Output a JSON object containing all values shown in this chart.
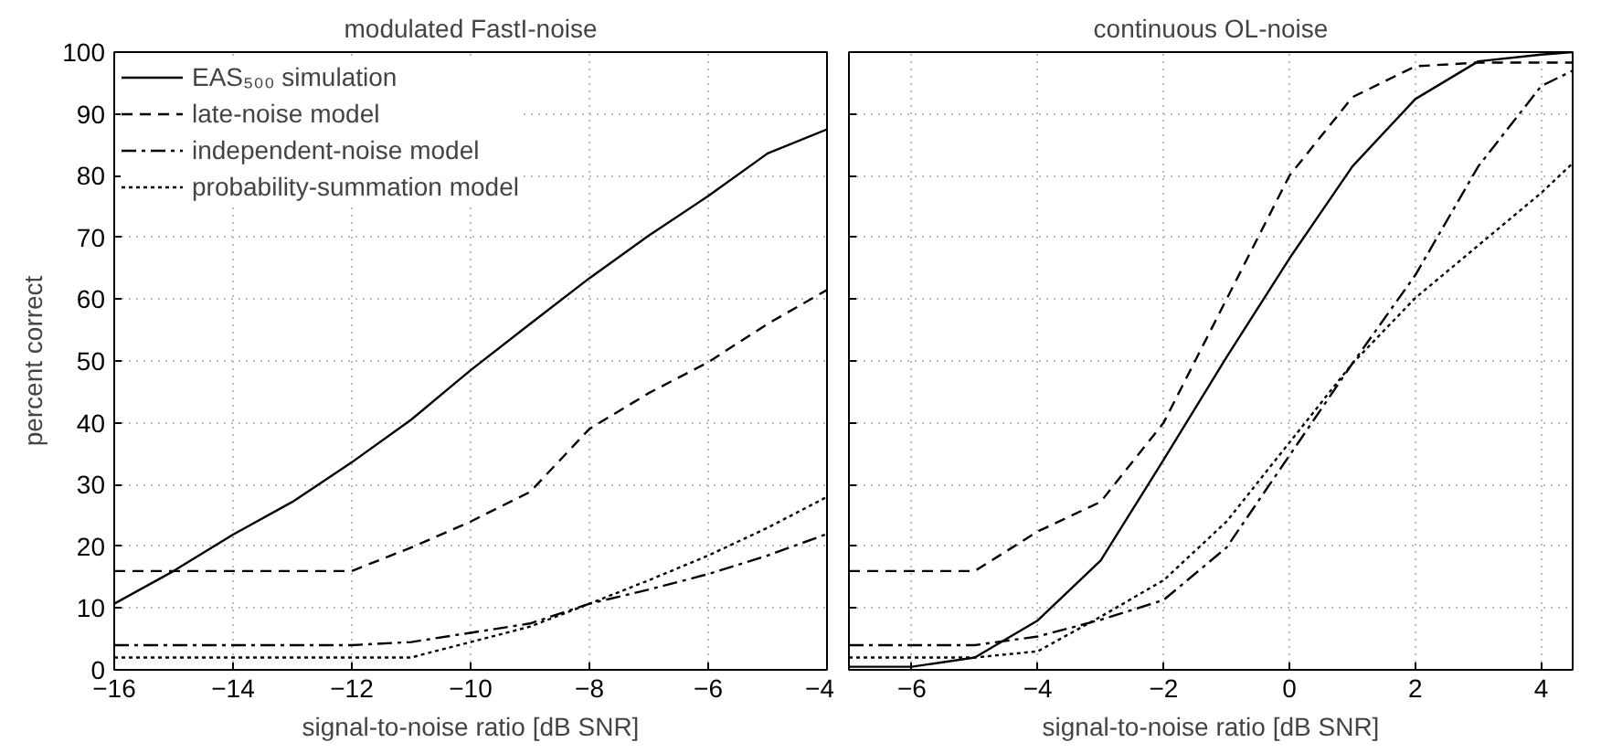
{
  "chart_data": [
    {
      "type": "line",
      "title": "modulated FastI-noise",
      "xlabel": "signal-to-noise ratio [dB SNR]",
      "ylabel": "percent correct",
      "xlim": [
        -16,
        -4
      ],
      "ylim": [
        0,
        100
      ],
      "xticks": [
        -16,
        -14,
        -12,
        -10,
        -8,
        -6,
        -4
      ],
      "yticks": [
        0,
        10,
        20,
        30,
        40,
        50,
        60,
        70,
        80,
        90,
        100
      ],
      "grid": true,
      "legend": "top left",
      "series": [
        {
          "name": "EAS₅₀₀ simulation",
          "color": "#000000",
          "line_style": "solid",
          "x": [
            -16,
            -15,
            -14,
            -13,
            -12,
            -11,
            -10,
            -9,
            -8,
            -7,
            -6,
            -5,
            -4
          ],
          "values": [
            10.7,
            16,
            21.9,
            27.2,
            33.6,
            40.5,
            48.5,
            56,
            63.4,
            70.3,
            76.7,
            83.6,
            87.5
          ]
        },
        {
          "name": "late-noise model",
          "color": "#000000",
          "line_style": "dashed",
          "x": [
            -16,
            -12,
            -11,
            -10,
            -9,
            -8,
            -7,
            -6,
            -5,
            -4
          ],
          "values": [
            16,
            16,
            19.8,
            24,
            28.8,
            39,
            44.8,
            49.8,
            56,
            61.5
          ]
        },
        {
          "name": "independent-noise model",
          "color": "#000000",
          "line_style": "dashdot",
          "x": [
            -16,
            -12,
            -11,
            -10,
            -9,
            -8,
            -7,
            -6,
            -5,
            -4
          ],
          "values": [
            4,
            4,
            4.5,
            6,
            7.5,
            10.7,
            13,
            15.5,
            18.5,
            22
          ]
        },
        {
          "name": "probability-summation model",
          "color": "#000000",
          "line_style": "dotted",
          "x": [
            -16,
            -11,
            -10,
            -9,
            -8,
            -7,
            -6,
            -5,
            -4
          ],
          "values": [
            2,
            2,
            4.5,
            7,
            10.7,
            14.5,
            18.5,
            23,
            28
          ]
        }
      ]
    },
    {
      "type": "line",
      "title": "continuous OL-noise",
      "xlabel": "signal-to-noise ratio [dB SNR]",
      "xlim": [
        -7,
        4.5
      ],
      "ylim": [
        0,
        100
      ],
      "xticks": [
        -6,
        -4,
        -2,
        0,
        2,
        4
      ],
      "yticks": [
        0,
        10,
        20,
        30,
        40,
        50,
        60,
        70,
        80,
        90,
        100
      ],
      "grid": true,
      "tick_labels": "x",
      "series": [
        {
          "color": "#000000",
          "line_style": "solid",
          "x": [
            -7,
            -6,
            -5,
            -4,
            -3,
            -2,
            -1,
            0,
            1,
            2,
            3,
            4,
            4.5
          ],
          "values": [
            0.5,
            0.5,
            2,
            8,
            17.7,
            34,
            50.6,
            66.6,
            81.5,
            92.4,
            98.5,
            99.6,
            100
          ]
        },
        {
          "color": "#000000",
          "line_style": "dashed",
          "x": [
            -7,
            -5,
            -4,
            -3,
            -2,
            -1,
            0,
            1,
            2,
            3,
            4,
            4.5
          ],
          "values": [
            16,
            16,
            22.4,
            27.2,
            40,
            60,
            80,
            92.7,
            97.7,
            98.3,
            98.3,
            98.3
          ]
        },
        {
          "color": "#000000",
          "line_style": "dashdot",
          "x": [
            -7,
            -5,
            -4,
            -3,
            -2,
            -1,
            0,
            1,
            2,
            3,
            4,
            4.5
          ],
          "values": [
            4,
            4,
            5.4,
            8.1,
            11.3,
            19.8,
            34.7,
            49.6,
            63.9,
            81.5,
            94.5,
            97
          ]
        },
        {
          "color": "#000000",
          "line_style": "dotted",
          "x": [
            -7,
            -5,
            -4,
            -3,
            -2,
            -1,
            0,
            1,
            2,
            3,
            4,
            4.5
          ],
          "values": [
            2,
            2,
            3,
            8.6,
            14.5,
            24,
            36.8,
            49.6,
            60.2,
            68.7,
            77.2,
            82
          ]
        }
      ]
    }
  ]
}
